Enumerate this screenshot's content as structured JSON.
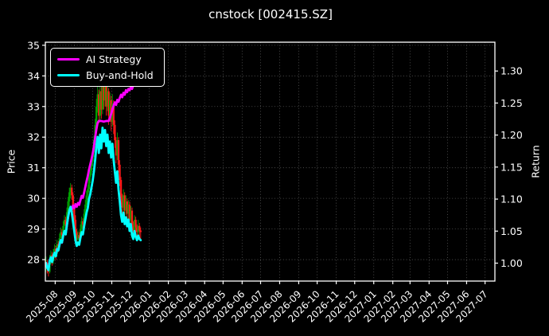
{
  "chart": {
    "title": "cnstock [002415.SZ]",
    "ylabel_left": "Price",
    "ylabel_right": "Return",
    "legend": [
      {
        "label": "AI Strategy",
        "color": "#ff00ff"
      },
      {
        "label": "Buy-and-Hold",
        "color": "#00ffff"
      }
    ],
    "colors": {
      "background": "#000000",
      "text": "#ffffff",
      "spine": "#ffffff",
      "grid": "#ffffff",
      "candle_up": "#00a000",
      "candle_down": "#ff1a1a",
      "ai_line": "#ff00ff",
      "buy_hold_line": "#00ffff"
    }
  },
  "chart_data": {
    "type": "mixed",
    "title": "cnstock [002415.SZ]",
    "x_start_date": "2025-07-17",
    "x_domain_days": [
      -1,
      730
    ],
    "x_ticks": {
      "labels": [
        "2025-08",
        "2025-09",
        "2025-10",
        "2025-11",
        "2025-12",
        "2026-01",
        "2026-02",
        "2026-03",
        "2026-04",
        "2026-05",
        "2026-06",
        "2026-07",
        "2026-08",
        "2026-09",
        "2026-10",
        "2026-11",
        "2026-12",
        "2027-01",
        "2027-02",
        "2027-03",
        "2027-04",
        "2027-05",
        "2027-06",
        "2027-07"
      ],
      "day_offsets": [
        15,
        46,
        76,
        107,
        137,
        168,
        199,
        227,
        258,
        288,
        319,
        349,
        380,
        411,
        441,
        472,
        502,
        533,
        564,
        592,
        623,
        653,
        684,
        714
      ]
    },
    "y_left": {
      "label": "Price",
      "ticks": [
        28,
        29,
        30,
        31,
        32,
        33,
        34,
        35
      ],
      "lim": [
        27.3,
        35.1
      ]
    },
    "y_right": {
      "label": "Return",
      "ticks": [
        1.0,
        1.05,
        1.1,
        1.15,
        1.2,
        1.25,
        1.3
      ],
      "lim": [
        0.972,
        1.345
      ]
    },
    "grid": {
      "on": true,
      "style": "dotted",
      "opacity": 0.35
    },
    "legend_position": "upper left",
    "series": [
      {
        "name": "Daily OHLC candles",
        "type": "candlestick",
        "axis": "left",
        "note": "d = calendar days after 2025-07-17; values [d, open, high, low, close]",
        "candles": [
          [
            0,
            27.8,
            28.1,
            27.6,
            27.9
          ],
          [
            2,
            27.9,
            28.0,
            27.55,
            27.7
          ],
          [
            4,
            27.7,
            27.9,
            27.45,
            27.6
          ],
          [
            6,
            27.6,
            28.15,
            27.55,
            28.0
          ],
          [
            8,
            28.0,
            28.3,
            27.85,
            28.15
          ],
          [
            10,
            28.15,
            28.25,
            27.8,
            27.95
          ],
          [
            12,
            27.95,
            28.35,
            27.85,
            28.2
          ],
          [
            14,
            28.2,
            28.5,
            28.05,
            28.35
          ],
          [
            16,
            28.35,
            28.45,
            28.0,
            28.2
          ],
          [
            18,
            28.2,
            28.65,
            28.1,
            28.5
          ],
          [
            20,
            28.5,
            28.6,
            28.25,
            28.45
          ],
          [
            22,
            28.45,
            28.85,
            28.3,
            28.7
          ],
          [
            24,
            28.7,
            29.05,
            28.55,
            28.9
          ],
          [
            26,
            28.9,
            29.0,
            28.6,
            28.8
          ],
          [
            28,
            28.8,
            29.25,
            28.7,
            29.1
          ],
          [
            30,
            29.1,
            29.45,
            28.95,
            29.3
          ],
          [
            32,
            29.3,
            29.4,
            28.95,
            29.15
          ],
          [
            34,
            29.15,
            29.7,
            29.05,
            29.55
          ],
          [
            36,
            29.55,
            30.05,
            29.4,
            29.9
          ],
          [
            38,
            29.9,
            30.35,
            29.75,
            30.2
          ],
          [
            40,
            30.2,
            30.5,
            30.0,
            30.35
          ],
          [
            42,
            30.35,
            30.45,
            29.95,
            30.1
          ],
          [
            44,
            30.1,
            30.2,
            29.55,
            29.7
          ],
          [
            46,
            29.7,
            29.8,
            29.1,
            29.3
          ],
          [
            48,
            29.3,
            29.45,
            28.75,
            28.9
          ],
          [
            50,
            28.9,
            29.0,
            28.45,
            28.65
          ],
          [
            52,
            28.65,
            28.95,
            28.5,
            28.8
          ],
          [
            54,
            28.8,
            28.9,
            28.55,
            28.7
          ],
          [
            56,
            28.7,
            29.15,
            28.6,
            29.0
          ],
          [
            58,
            29.0,
            29.4,
            28.9,
            29.25
          ],
          [
            60,
            29.25,
            29.35,
            28.95,
            29.15
          ],
          [
            62,
            29.15,
            29.65,
            29.05,
            29.5
          ],
          [
            64,
            29.5,
            29.95,
            29.4,
            29.8
          ],
          [
            66,
            29.8,
            30.25,
            29.7,
            30.1
          ],
          [
            68,
            30.1,
            30.45,
            29.95,
            30.3
          ],
          [
            70,
            30.3,
            30.85,
            30.2,
            30.7
          ],
          [
            72,
            30.7,
            31.05,
            30.5,
            30.9
          ],
          [
            74,
            30.9,
            31.35,
            30.75,
            31.2
          ],
          [
            76,
            31.2,
            31.65,
            31.05,
            31.5
          ],
          [
            78,
            31.5,
            32.05,
            31.35,
            31.9
          ],
          [
            80,
            31.9,
            32.6,
            31.75,
            32.4
          ],
          [
            82,
            32.4,
            33.25,
            32.25,
            33.0
          ],
          [
            84,
            33.0,
            33.65,
            32.8,
            33.4
          ],
          [
            86,
            33.4,
            33.55,
            32.45,
            32.7
          ],
          [
            88,
            32.7,
            34.0,
            32.55,
            33.5
          ],
          [
            90,
            33.5,
            33.7,
            32.6,
            32.9
          ],
          [
            92,
            32.9,
            34.3,
            32.75,
            33.8
          ],
          [
            94,
            33.8,
            33.95,
            32.9,
            33.2
          ],
          [
            96,
            33.2,
            34.2,
            33.0,
            33.7
          ],
          [
            98,
            33.7,
            33.85,
            32.7,
            33.0
          ],
          [
            100,
            33.0,
            33.9,
            32.85,
            33.5
          ],
          [
            102,
            33.5,
            33.6,
            32.4,
            32.7
          ],
          [
            104,
            32.7,
            33.45,
            32.5,
            33.2
          ],
          [
            106,
            33.2,
            33.35,
            32.2,
            32.5
          ],
          [
            108,
            32.5,
            33.4,
            32.35,
            33.1
          ],
          [
            110,
            33.1,
            33.2,
            32.1,
            32.4
          ],
          [
            112,
            32.4,
            32.55,
            31.65,
            31.9
          ],
          [
            114,
            31.9,
            32.0,
            31.15,
            31.4
          ],
          [
            116,
            31.4,
            32.15,
            31.25,
            31.9
          ],
          [
            118,
            31.9,
            32.0,
            30.85,
            31.1
          ],
          [
            120,
            31.1,
            31.25,
            30.4,
            30.6
          ],
          [
            122,
            30.6,
            30.7,
            29.8,
            30.0
          ],
          [
            124,
            30.0,
            30.15,
            29.45,
            29.7
          ],
          [
            126,
            29.7,
            30.3,
            29.55,
            30.1
          ],
          [
            128,
            30.1,
            30.2,
            29.4,
            29.6
          ],
          [
            130,
            29.6,
            30.1,
            29.45,
            29.9
          ],
          [
            132,
            29.9,
            30.0,
            29.3,
            29.5
          ],
          [
            134,
            29.5,
            29.95,
            29.35,
            29.8
          ],
          [
            136,
            29.8,
            29.9,
            29.1,
            29.3
          ],
          [
            138,
            29.3,
            29.75,
            29.15,
            29.6
          ],
          [
            140,
            29.6,
            29.7,
            28.9,
            29.1
          ],
          [
            142,
            29.1,
            29.25,
            28.7,
            28.95
          ],
          [
            144,
            28.95,
            29.45,
            28.8,
            29.3
          ],
          [
            146,
            29.3,
            29.4,
            28.85,
            29.05
          ],
          [
            148,
            29.05,
            29.15,
            28.65,
            28.9
          ],
          [
            150,
            28.9,
            29.3,
            28.75,
            29.1
          ],
          [
            152,
            29.1,
            29.2,
            28.7,
            28.95
          ],
          [
            154,
            28.95,
            29.05,
            28.6,
            28.9
          ]
        ]
      },
      {
        "name": "AI Strategy",
        "type": "line",
        "axis": "right",
        "color": "#ff00ff",
        "points": [
          [
            0,
            1.0
          ],
          [
            2,
            0.993
          ],
          [
            4,
            0.989
          ],
          [
            6,
            1.004
          ],
          [
            8,
            1.009
          ],
          [
            10,
            1.002
          ],
          [
            12,
            1.011
          ],
          [
            14,
            1.016
          ],
          [
            16,
            1.011
          ],
          [
            18,
            1.022
          ],
          [
            20,
            1.02
          ],
          [
            22,
            1.029
          ],
          [
            24,
            1.036
          ],
          [
            26,
            1.032
          ],
          [
            28,
            1.043
          ],
          [
            30,
            1.05
          ],
          [
            32,
            1.045
          ],
          [
            34,
            1.059
          ],
          [
            36,
            1.072
          ],
          [
            38,
            1.082
          ],
          [
            40,
            1.088
          ],
          [
            42,
            1.084
          ],
          [
            44,
            1.09
          ],
          [
            46,
            1.086
          ],
          [
            48,
            1.092
          ],
          [
            50,
            1.088
          ],
          [
            52,
            1.094
          ],
          [
            54,
            1.091
          ],
          [
            56,
            1.098
          ],
          [
            58,
            1.105
          ],
          [
            60,
            1.102
          ],
          [
            62,
            1.11
          ],
          [
            64,
            1.119
          ],
          [
            66,
            1.128
          ],
          [
            68,
            1.136
          ],
          [
            70,
            1.146
          ],
          [
            72,
            1.154
          ],
          [
            74,
            1.162
          ],
          [
            76,
            1.171
          ],
          [
            78,
            1.182
          ],
          [
            80,
            1.196
          ],
          [
            82,
            1.209
          ],
          [
            84,
            1.219
          ],
          [
            86,
            1.222
          ],
          [
            90,
            1.222
          ],
          [
            94,
            1.221
          ],
          [
            98,
            1.222
          ],
          [
            102,
            1.222
          ],
          [
            104,
            1.227
          ],
          [
            106,
            1.233
          ],
          [
            108,
            1.24
          ],
          [
            110,
            1.246
          ],
          [
            112,
            1.251
          ],
          [
            114,
            1.247
          ],
          [
            116,
            1.255
          ],
          [
            118,
            1.252
          ],
          [
            120,
            1.258
          ],
          [
            122,
            1.263
          ],
          [
            124,
            1.259
          ],
          [
            126,
            1.266
          ],
          [
            128,
            1.263
          ],
          [
            130,
            1.27
          ],
          [
            132,
            1.267
          ],
          [
            134,
            1.272
          ],
          [
            136,
            1.27
          ],
          [
            138,
            1.275
          ],
          [
            140,
            1.272
          ],
          [
            142,
            1.278
          ],
          [
            144,
            1.297
          ],
          [
            145,
            1.281
          ],
          [
            146,
            1.278
          ],
          [
            148,
            1.283
          ],
          [
            150,
            1.281
          ],
          [
            152,
            1.285
          ],
          [
            154,
            1.288
          ]
        ]
      },
      {
        "name": "Buy-and-Hold",
        "type": "line",
        "axis": "right",
        "color": "#00ffff",
        "basis": "candle close divided by first close (starts at 1.00, peaks ~1.22, ends ~1.04)"
      }
    ]
  }
}
